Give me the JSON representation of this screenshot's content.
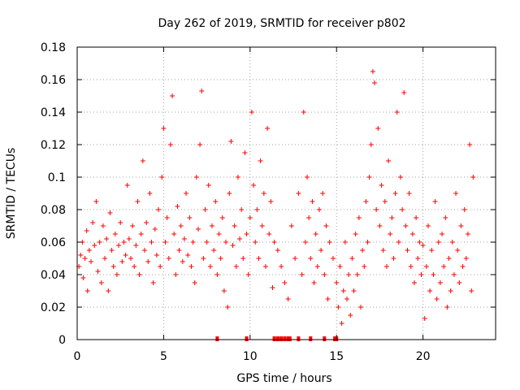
{
  "chart_data": {
    "type": "scatter",
    "title": "Day 262 of 2019, SRMTID for receiver p802",
    "xlabel": "GPS time / hours",
    "ylabel": "SRMTID / TECUs",
    "xlim": [
      0,
      24.2
    ],
    "ylim": [
      0,
      0.18
    ],
    "xticks": [
      0,
      5,
      10,
      15,
      20
    ],
    "yticks": [
      0,
      0.02,
      0.04,
      0.06,
      0.08,
      0.1,
      0.12,
      0.14,
      0.16,
      0.18
    ],
    "ytick_labels": [
      "0",
      "0.02",
      "0.04",
      "0.06",
      "0.08",
      "0.1",
      "0.12",
      "0.14",
      "0.16",
      "0.18"
    ],
    "grid": true,
    "marker": "+",
    "color": "#ff0000",
    "series": [
      {
        "name": "SRMTID",
        "points": [
          [
            0.1,
            0.045
          ],
          [
            0.2,
            0.052
          ],
          [
            0.3,
            0.06
          ],
          [
            0.35,
            0.038
          ],
          [
            0.45,
            0.05
          ],
          [
            0.55,
            0.067
          ],
          [
            0.6,
            0.03
          ],
          [
            0.7,
            0.055
          ],
          [
            0.8,
            0.048
          ],
          [
            0.9,
            0.072
          ],
          [
            1.0,
            0.058
          ],
          [
            1.1,
            0.085
          ],
          [
            1.2,
            0.042
          ],
          [
            1.3,
            0.06
          ],
          [
            1.4,
            0.035
          ],
          [
            1.5,
            0.07
          ],
          [
            1.6,
            0.05
          ],
          [
            1.7,
            0.062
          ],
          [
            1.8,
            0.03
          ],
          [
            1.9,
            0.078
          ],
          [
            2.0,
            0.055
          ],
          [
            2.1,
            0.045
          ],
          [
            2.2,
            0.065
          ],
          [
            2.3,
            0.04
          ],
          [
            2.4,
            0.058
          ],
          [
            2.5,
            0.072
          ],
          [
            2.6,
            0.048
          ],
          [
            2.7,
            0.06
          ],
          [
            2.8,
            0.052
          ],
          [
            2.9,
            0.095
          ],
          [
            3.0,
            0.062
          ],
          [
            3.1,
            0.05
          ],
          [
            3.2,
            0.07
          ],
          [
            3.3,
            0.045
          ],
          [
            3.4,
            0.058
          ],
          [
            3.5,
            0.085
          ],
          [
            3.6,
            0.04
          ],
          [
            3.7,
            0.065
          ],
          [
            3.8,
            0.11
          ],
          [
            3.9,
            0.055
          ],
          [
            4.0,
            0.072
          ],
          [
            4.1,
            0.048
          ],
          [
            4.2,
            0.09
          ],
          [
            4.3,
            0.06
          ],
          [
            4.4,
            0.035
          ],
          [
            4.5,
            0.068
          ],
          [
            4.6,
            0.052
          ],
          [
            4.7,
            0.08
          ],
          [
            4.8,
            0.045
          ],
          [
            4.9,
            0.1
          ],
          [
            5.0,
            0.13
          ],
          [
            5.1,
            0.06
          ],
          [
            5.2,
            0.075
          ],
          [
            5.3,
            0.05
          ],
          [
            5.4,
            0.12
          ],
          [
            5.5,
            0.15
          ],
          [
            5.6,
            0.065
          ],
          [
            5.7,
            0.04
          ],
          [
            5.8,
            0.082
          ],
          [
            5.9,
            0.055
          ],
          [
            6.0,
            0.07
          ],
          [
            6.1,
            0.048
          ],
          [
            6.2,
            0.062
          ],
          [
            6.3,
            0.09
          ],
          [
            6.4,
            0.052
          ],
          [
            6.5,
            0.075
          ],
          [
            6.6,
            0.045
          ],
          [
            6.7,
            0.06
          ],
          [
            6.8,
            0.035
          ],
          [
            6.9,
            0.1
          ],
          [
            7.0,
            0.068
          ],
          [
            7.1,
            0.12
          ],
          [
            7.2,
            0.153
          ],
          [
            7.3,
            0.05
          ],
          [
            7.4,
            0.08
          ],
          [
            7.5,
            0.06
          ],
          [
            7.6,
            0.095
          ],
          [
            7.7,
            0.045
          ],
          [
            7.8,
            0.07
          ],
          [
            7.9,
            0.055
          ],
          [
            8.0,
            0.085
          ],
          [
            8.1,
            0.04
          ],
          [
            8.2,
            0.065
          ],
          [
            8.3,
            0.05
          ],
          [
            8.4,
            0.075
          ],
          [
            8.5,
            0.03
          ],
          [
            8.6,
            0.06
          ],
          [
            8.7,
            0.02
          ],
          [
            8.8,
            0.09
          ],
          [
            8.9,
            0.122
          ],
          [
            9.0,
            0.058
          ],
          [
            9.1,
            0.07
          ],
          [
            9.2,
            0.045
          ],
          [
            9.3,
            0.1
          ],
          [
            9.4,
            0.062
          ],
          [
            9.5,
            0.08
          ],
          [
            9.6,
            0.05
          ],
          [
            9.7,
            0.115
          ],
          [
            9.8,
            0.065
          ],
          [
            9.9,
            0.04
          ],
          [
            10.0,
            0.075
          ],
          [
            10.1,
            0.14
          ],
          [
            10.2,
            0.095
          ],
          [
            10.3,
            0.06
          ],
          [
            10.4,
            0.08
          ],
          [
            10.5,
            0.05
          ],
          [
            10.6,
            0.11
          ],
          [
            10.7,
            0.07
          ],
          [
            10.8,
            0.09
          ],
          [
            10.9,
            0.045
          ],
          [
            11.0,
            0.13
          ],
          [
            11.1,
            0.065
          ],
          [
            11.2,
            0.085
          ],
          [
            11.3,
            0.032
          ],
          [
            11.4,
            0.06
          ],
          [
            11.6,
            0.055
          ],
          [
            11.8,
            0.045
          ],
          [
            12.0,
            0.035
          ],
          [
            12.2,
            0.025
          ],
          [
            12.4,
            0.07
          ],
          [
            12.6,
            0.05
          ],
          [
            12.8,
            0.09
          ],
          [
            13.0,
            0.04
          ],
          [
            13.1,
            0.14
          ],
          [
            13.2,
            0.06
          ],
          [
            13.3,
            0.1
          ],
          [
            13.4,
            0.075
          ],
          [
            13.5,
            0.05
          ],
          [
            13.6,
            0.085
          ],
          [
            13.7,
            0.035
          ],
          [
            13.8,
            0.065
          ],
          [
            13.9,
            0.045
          ],
          [
            14.0,
            0.08
          ],
          [
            14.1,
            0.055
          ],
          [
            14.2,
            0.09
          ],
          [
            14.3,
            0.04
          ],
          [
            14.4,
            0.07
          ],
          [
            14.5,
            0.025
          ],
          [
            14.6,
            0.06
          ],
          [
            14.8,
            0.05
          ],
          [
            15.0,
            0.035
          ],
          [
            15.1,
            0.02
          ],
          [
            15.2,
            0.045
          ],
          [
            15.3,
            0.01
          ],
          [
            15.4,
            0.03
          ],
          [
            15.5,
            0.06
          ],
          [
            15.6,
            0.025
          ],
          [
            15.7,
            0.04
          ],
          [
            15.8,
            0.015
          ],
          [
            15.9,
            0.05
          ],
          [
            16.0,
            0.03
          ],
          [
            16.1,
            0.065
          ],
          [
            16.2,
            0.04
          ],
          [
            16.3,
            0.075
          ],
          [
            16.4,
            0.02
          ],
          [
            16.5,
            0.055
          ],
          [
            16.6,
            0.045
          ],
          [
            16.7,
            0.085
          ],
          [
            16.8,
            0.06
          ],
          [
            16.9,
            0.1
          ],
          [
            17.0,
            0.12
          ],
          [
            17.1,
            0.165
          ],
          [
            17.2,
            0.158
          ],
          [
            17.3,
            0.08
          ],
          [
            17.4,
            0.13
          ],
          [
            17.5,
            0.07
          ],
          [
            17.6,
            0.095
          ],
          [
            17.7,
            0.055
          ],
          [
            17.8,
            0.085
          ],
          [
            17.9,
            0.045
          ],
          [
            18.0,
            0.11
          ],
          [
            18.1,
            0.065
          ],
          [
            18.2,
            0.075
          ],
          [
            18.3,
            0.05
          ],
          [
            18.4,
            0.09
          ],
          [
            18.5,
            0.14
          ],
          [
            18.6,
            0.06
          ],
          [
            18.7,
            0.1
          ],
          [
            18.8,
            0.08
          ],
          [
            18.9,
            0.152
          ],
          [
            19.0,
            0.07
          ],
          [
            19.1,
            0.055
          ],
          [
            19.2,
            0.09
          ],
          [
            19.3,
            0.045
          ],
          [
            19.4,
            0.065
          ],
          [
            19.5,
            0.035
          ],
          [
            19.6,
            0.075
          ],
          [
            19.7,
            0.05
          ],
          [
            19.8,
            0.06
          ],
          [
            19.9,
            0.04
          ],
          [
            20.0,
            0.058
          ],
          [
            20.1,
            0.013
          ],
          [
            20.2,
            0.045
          ],
          [
            20.3,
            0.07
          ],
          [
            20.4,
            0.03
          ],
          [
            20.5,
            0.055
          ],
          [
            20.6,
            0.04
          ],
          [
            20.7,
            0.085
          ],
          [
            20.8,
            0.025
          ],
          [
            20.9,
            0.06
          ],
          [
            21.0,
            0.035
          ],
          [
            21.1,
            0.065
          ],
          [
            21.2,
            0.045
          ],
          [
            21.3,
            0.075
          ],
          [
            21.4,
            0.02
          ],
          [
            21.5,
            0.05
          ],
          [
            21.6,
            0.03
          ],
          [
            21.7,
            0.06
          ],
          [
            21.8,
            0.04
          ],
          [
            21.9,
            0.09
          ],
          [
            22.0,
            0.055
          ],
          [
            22.1,
            0.035
          ],
          [
            22.2,
            0.07
          ],
          [
            22.3,
            0.045
          ],
          [
            22.4,
            0.08
          ],
          [
            22.5,
            0.05
          ],
          [
            22.6,
            0.065
          ],
          [
            22.7,
            0.12
          ],
          [
            22.8,
            0.03
          ],
          [
            22.9,
            0.1
          ]
        ]
      }
    ],
    "zero_markers_x": [
      8.1,
      9.8,
      11.4,
      11.6,
      11.8,
      12.0,
      12.2,
      12.3,
      12.8,
      13.5,
      14.3,
      14.9,
      15.0
    ]
  }
}
